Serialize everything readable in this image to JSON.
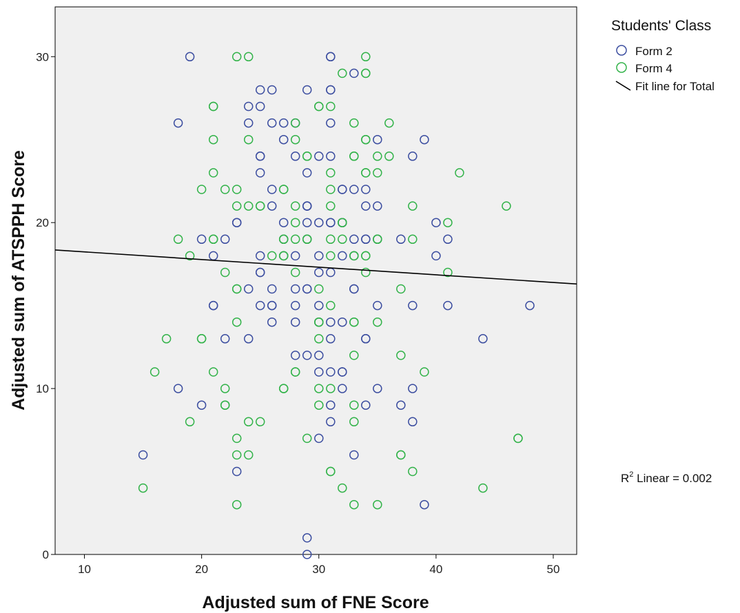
{
  "chart_data": {
    "type": "scatter",
    "xlabel": "Adjusted sum of FNE Score",
    "ylabel": "Adjusted sum of ATSPPH Score",
    "xlim": [
      7.5,
      52
    ],
    "ylim": [
      0,
      33
    ],
    "x_ticks": [
      10,
      20,
      30,
      40,
      50
    ],
    "y_ticks": [
      0,
      10,
      20,
      30
    ],
    "grid": false,
    "legend": {
      "title": "Students' Class",
      "position": "right-top",
      "fit_label": "Fit line for Total"
    },
    "annotation": {
      "prefix": "R",
      "sup": "2",
      "text": " Linear = 0.002"
    },
    "fit_line": {
      "x": [
        7.5,
        52
      ],
      "y": [
        18.35,
        16.3
      ]
    },
    "series": [
      {
        "name": "Form 2",
        "color": "#3c4ea0",
        "points": [
          [
            19,
            30
          ],
          [
            31,
            30
          ],
          [
            31,
            30
          ],
          [
            33,
            29
          ],
          [
            25,
            28
          ],
          [
            26,
            28
          ],
          [
            29,
            28
          ],
          [
            31,
            28
          ],
          [
            31,
            28
          ],
          [
            24,
            27
          ],
          [
            25,
            27
          ],
          [
            18,
            26
          ],
          [
            24,
            26
          ],
          [
            26,
            26
          ],
          [
            27,
            26
          ],
          [
            28,
            26
          ],
          [
            31,
            26
          ],
          [
            27,
            25
          ],
          [
            35,
            25
          ],
          [
            39,
            25
          ],
          [
            25,
            24
          ],
          [
            25,
            24
          ],
          [
            28,
            24
          ],
          [
            30,
            24
          ],
          [
            31,
            24
          ],
          [
            38,
            24
          ],
          [
            25,
            23
          ],
          [
            29,
            23
          ],
          [
            26,
            22
          ],
          [
            32,
            22
          ],
          [
            32,
            22
          ],
          [
            33,
            22
          ],
          [
            34,
            22
          ],
          [
            26,
            21
          ],
          [
            29,
            21
          ],
          [
            29,
            21
          ],
          [
            29,
            21
          ],
          [
            34,
            21
          ],
          [
            35,
            21
          ],
          [
            23,
            20
          ],
          [
            23,
            20
          ],
          [
            27,
            20
          ],
          [
            29,
            20
          ],
          [
            30,
            20
          ],
          [
            31,
            20
          ],
          [
            31,
            20
          ],
          [
            32,
            20
          ],
          [
            32,
            20
          ],
          [
            40,
            20
          ],
          [
            20,
            19
          ],
          [
            22,
            19
          ],
          [
            27,
            19
          ],
          [
            29,
            19
          ],
          [
            33,
            19
          ],
          [
            34,
            19
          ],
          [
            34,
            19
          ],
          [
            35,
            19
          ],
          [
            37,
            19
          ],
          [
            41,
            19
          ],
          [
            21,
            18
          ],
          [
            25,
            18
          ],
          [
            27,
            18
          ],
          [
            28,
            18
          ],
          [
            30,
            18
          ],
          [
            32,
            18
          ],
          [
            33,
            18
          ],
          [
            40,
            18
          ],
          [
            25,
            17
          ],
          [
            25,
            17
          ],
          [
            30,
            17
          ],
          [
            31,
            17
          ],
          [
            24,
            16
          ],
          [
            26,
            16
          ],
          [
            28,
            16
          ],
          [
            29,
            16
          ],
          [
            29,
            16
          ],
          [
            33,
            16
          ],
          [
            33,
            16
          ],
          [
            21,
            15
          ],
          [
            21,
            15
          ],
          [
            25,
            15
          ],
          [
            26,
            15
          ],
          [
            26,
            15
          ],
          [
            28,
            15
          ],
          [
            30,
            15
          ],
          [
            35,
            15
          ],
          [
            38,
            15
          ],
          [
            41,
            15
          ],
          [
            48,
            15
          ],
          [
            26,
            14
          ],
          [
            28,
            14
          ],
          [
            31,
            14
          ],
          [
            32,
            14
          ],
          [
            30,
            14
          ],
          [
            22,
            13
          ],
          [
            24,
            13
          ],
          [
            31,
            13
          ],
          [
            34,
            13
          ],
          [
            34,
            13
          ],
          [
            44,
            13
          ],
          [
            28,
            12
          ],
          [
            29,
            12
          ],
          [
            30,
            12
          ],
          [
            30,
            11
          ],
          [
            31,
            11
          ],
          [
            32,
            11
          ],
          [
            32,
            11
          ],
          [
            18,
            10
          ],
          [
            32,
            10
          ],
          [
            35,
            10
          ],
          [
            38,
            10
          ],
          [
            20,
            9
          ],
          [
            31,
            9
          ],
          [
            34,
            9
          ],
          [
            37,
            9
          ],
          [
            31,
            8
          ],
          [
            38,
            8
          ],
          [
            30,
            7
          ],
          [
            15,
            6
          ],
          [
            33,
            6
          ],
          [
            23,
            5
          ],
          [
            39,
            3
          ],
          [
            29,
            1
          ],
          [
            29,
            0
          ]
        ]
      },
      {
        "name": "Form 4",
        "color": "#33b34a",
        "points": [
          [
            23,
            30
          ],
          [
            24,
            30
          ],
          [
            34,
            30
          ],
          [
            32,
            29
          ],
          [
            34,
            29
          ],
          [
            34,
            29
          ],
          [
            21,
            27
          ],
          [
            21,
            27
          ],
          [
            30,
            27
          ],
          [
            30,
            27
          ],
          [
            31,
            27
          ],
          [
            28,
            26
          ],
          [
            33,
            26
          ],
          [
            36,
            26
          ],
          [
            21,
            25
          ],
          [
            24,
            25
          ],
          [
            28,
            25
          ],
          [
            34,
            25
          ],
          [
            34,
            25
          ],
          [
            29,
            24
          ],
          [
            29,
            24
          ],
          [
            33,
            24
          ],
          [
            33,
            24
          ],
          [
            35,
            24
          ],
          [
            36,
            24
          ],
          [
            21,
            23
          ],
          [
            31,
            23
          ],
          [
            34,
            23
          ],
          [
            34,
            23
          ],
          [
            35,
            23
          ],
          [
            42,
            23
          ],
          [
            20,
            22
          ],
          [
            22,
            22
          ],
          [
            23,
            22
          ],
          [
            27,
            22
          ],
          [
            27,
            22
          ],
          [
            31,
            22
          ],
          [
            23,
            21
          ],
          [
            24,
            21
          ],
          [
            25,
            21
          ],
          [
            25,
            21
          ],
          [
            28,
            21
          ],
          [
            31,
            21
          ],
          [
            38,
            21
          ],
          [
            46,
            21
          ],
          [
            28,
            20
          ],
          [
            32,
            20
          ],
          [
            32,
            20
          ],
          [
            41,
            20
          ],
          [
            18,
            19
          ],
          [
            21,
            19
          ],
          [
            21,
            19
          ],
          [
            27,
            19
          ],
          [
            27,
            19
          ],
          [
            28,
            19
          ],
          [
            29,
            19
          ],
          [
            29,
            19
          ],
          [
            31,
            19
          ],
          [
            32,
            19
          ],
          [
            35,
            19
          ],
          [
            35,
            19
          ],
          [
            38,
            19
          ],
          [
            19,
            18
          ],
          [
            26,
            18
          ],
          [
            27,
            18
          ],
          [
            27,
            18
          ],
          [
            31,
            18
          ],
          [
            33,
            18
          ],
          [
            33,
            18
          ],
          [
            34,
            18
          ],
          [
            34,
            18
          ],
          [
            22,
            17
          ],
          [
            28,
            17
          ],
          [
            34,
            17
          ],
          [
            41,
            17
          ],
          [
            23,
            16
          ],
          [
            23,
            16
          ],
          [
            30,
            16
          ],
          [
            37,
            16
          ],
          [
            31,
            15
          ],
          [
            23,
            14
          ],
          [
            30,
            14
          ],
          [
            30,
            14
          ],
          [
            33,
            14
          ],
          [
            33,
            14
          ],
          [
            35,
            14
          ],
          [
            17,
            13
          ],
          [
            20,
            13
          ],
          [
            20,
            13
          ],
          [
            30,
            13
          ],
          [
            33,
            12
          ],
          [
            37,
            12
          ],
          [
            16,
            11
          ],
          [
            21,
            11
          ],
          [
            28,
            11
          ],
          [
            28,
            11
          ],
          [
            39,
            11
          ],
          [
            22,
            10
          ],
          [
            27,
            10
          ],
          [
            27,
            10
          ],
          [
            30,
            10
          ],
          [
            31,
            10
          ],
          [
            22,
            9
          ],
          [
            22,
            9
          ],
          [
            30,
            9
          ],
          [
            33,
            9
          ],
          [
            19,
            8
          ],
          [
            24,
            8
          ],
          [
            25,
            8
          ],
          [
            33,
            8
          ],
          [
            23,
            7
          ],
          [
            29,
            7
          ],
          [
            47,
            7
          ],
          [
            47,
            7
          ],
          [
            23,
            6
          ],
          [
            24,
            6
          ],
          [
            37,
            6
          ],
          [
            37,
            6
          ],
          [
            31,
            5
          ],
          [
            31,
            5
          ],
          [
            38,
            5
          ],
          [
            15,
            4
          ],
          [
            32,
            4
          ],
          [
            44,
            4
          ],
          [
            23,
            3
          ],
          [
            33,
            3
          ],
          [
            35,
            3
          ]
        ]
      }
    ]
  }
}
